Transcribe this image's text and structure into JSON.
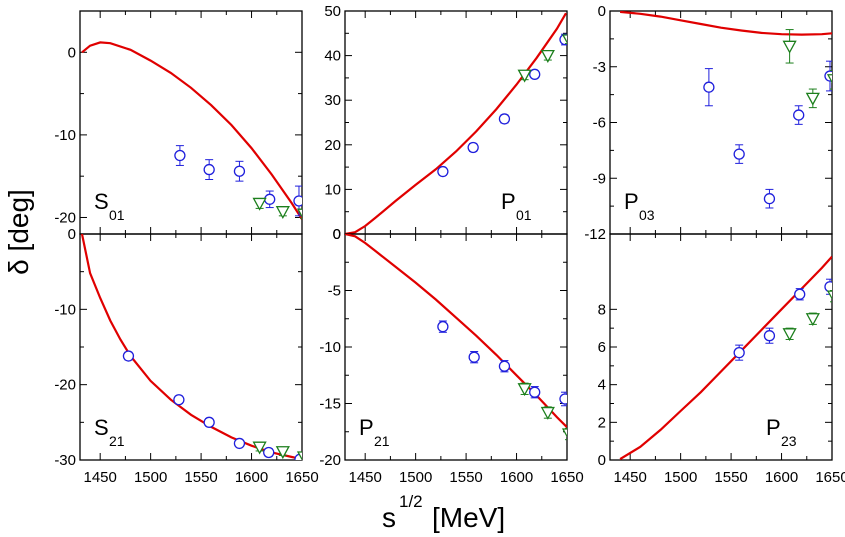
{
  "chart_data": {
    "type": "scatter",
    "ylabel": "δ [deg]",
    "xlabel_main": "s",
    "xlabel_sup": "1/2",
    "xlabel_unit": "[MeV]",
    "xlim": [
      1430,
      1650
    ],
    "x_ticks": [
      1450,
      1500,
      1550,
      1600,
      1650
    ],
    "x_tick_labels": [
      "1450",
      "1500",
      "1550",
      "1600",
      "1650"
    ],
    "colors": {
      "model": "#e00000",
      "circle": "#1f1fdc",
      "triangle": "#1c7f1c"
    },
    "panels": [
      {
        "id": "S01",
        "label": "S",
        "sub": "01",
        "label_pos": "bottom-left",
        "ylim": [
          -22,
          5
        ],
        "y_ticks": [
          0,
          -10,
          -20
        ],
        "y_tick_labels": [
          "0",
          "-10",
          "-20"
        ],
        "curve": [
          [
            1432,
            0
          ],
          [
            1440,
            0.8
          ],
          [
            1450,
            1.2
          ],
          [
            1460,
            1.1
          ],
          [
            1480,
            0.3
          ],
          [
            1500,
            -1.0
          ],
          [
            1520,
            -2.5
          ],
          [
            1540,
            -4.3
          ],
          [
            1560,
            -6.4
          ],
          [
            1580,
            -8.8
          ],
          [
            1600,
            -11.6
          ],
          [
            1620,
            -14.8
          ],
          [
            1640,
            -18.3
          ],
          [
            1650,
            -20.2
          ]
        ],
        "circles": [
          [
            1529,
            -12.5,
            1.2
          ],
          [
            1558,
            -14.2,
            1.2
          ],
          [
            1588,
            -14.4,
            1.2
          ],
          [
            1618,
            -17.8,
            1.0
          ],
          [
            1647,
            -18.0,
            1.8
          ]
        ],
        "triangles": [
          [
            1608,
            -18.3,
            0.6
          ],
          [
            1631,
            -19.3,
            0.5
          ],
          [
            1652,
            -19.6,
            0.5
          ]
        ]
      },
      {
        "id": "P01",
        "label": "P",
        "sub": "01",
        "label_pos": "bottom-right",
        "ylim": [
          0,
          50
        ],
        "y_ticks": [
          0,
          10,
          20,
          30,
          40,
          50
        ],
        "y_tick_labels": [
          "0",
          "10",
          "20",
          "30",
          "40",
          "50"
        ],
        "curve": [
          [
            1430,
            0
          ],
          [
            1440,
            0.4
          ],
          [
            1450,
            1.8
          ],
          [
            1460,
            3.6
          ],
          [
            1480,
            7.4
          ],
          [
            1500,
            11.0
          ],
          [
            1520,
            14.5
          ],
          [
            1540,
            18.5
          ],
          [
            1560,
            23.0
          ],
          [
            1580,
            28.0
          ],
          [
            1600,
            33.5
          ],
          [
            1620,
            39.5
          ],
          [
            1640,
            46.0
          ],
          [
            1649,
            49.5
          ]
        ],
        "circles": [
          [
            1527,
            14.0,
            0.8
          ],
          [
            1557,
            19.4,
            0.9
          ],
          [
            1588,
            25.8,
            0.9
          ],
          [
            1618,
            35.8,
            0.8
          ],
          [
            1648,
            43.6,
            1.2
          ]
        ],
        "triangles": [
          [
            1608,
            35.6,
            1.0
          ],
          [
            1631,
            40.0,
            1.0
          ],
          [
            1652,
            43.5,
            0.8
          ]
        ]
      },
      {
        "id": "P03",
        "label": "P",
        "sub": "03",
        "label_pos": "bottom-left",
        "ylim": [
          -12,
          0
        ],
        "y_ticks": [
          0,
          -3,
          -6,
          -9,
          -12
        ],
        "y_tick_labels": [
          "0",
          "-3",
          "-6",
          "-9",
          "-12"
        ],
        "curve": [
          [
            1440,
            -0.05
          ],
          [
            1460,
            -0.15
          ],
          [
            1480,
            -0.3
          ],
          [
            1500,
            -0.5
          ],
          [
            1520,
            -0.7
          ],
          [
            1540,
            -0.9
          ],
          [
            1560,
            -1.05
          ],
          [
            1580,
            -1.18
          ],
          [
            1600,
            -1.25
          ],
          [
            1620,
            -1.27
          ],
          [
            1640,
            -1.25
          ],
          [
            1650,
            -1.2
          ]
        ],
        "circles": [
          [
            1528,
            -4.1,
            1.0
          ],
          [
            1558,
            -7.7,
            0.5
          ],
          [
            1588,
            -10.1,
            0.5
          ],
          [
            1617,
            -5.6,
            0.5
          ],
          [
            1648,
            -3.5,
            0.8
          ]
        ],
        "triangles": [
          [
            1608,
            -1.9,
            0.9
          ],
          [
            1631,
            -4.7,
            0.5
          ],
          [
            1652,
            -3.7,
            0.5
          ]
        ]
      },
      {
        "id": "S21",
        "label": "S",
        "sub": "21",
        "label_pos": "bottom-left",
        "ylim": [
          -30,
          0
        ],
        "y_ticks": [
          0,
          -10,
          -20,
          -30
        ],
        "y_tick_labels": [
          "0",
          "-10",
          "-20",
          "-30"
        ],
        "curve": [
          [
            1432,
            0
          ],
          [
            1440,
            -5.2
          ],
          [
            1450,
            -8.5
          ],
          [
            1460,
            -11.5
          ],
          [
            1470,
            -14.0
          ],
          [
            1480,
            -16.2
          ],
          [
            1500,
            -19.5
          ],
          [
            1520,
            -22.0
          ],
          [
            1540,
            -24.0
          ],
          [
            1560,
            -25.6
          ],
          [
            1580,
            -27.0
          ],
          [
            1600,
            -28.1
          ],
          [
            1620,
            -29.0
          ],
          [
            1640,
            -29.6
          ],
          [
            1650,
            -29.9
          ]
        ],
        "circles": [
          [
            1478,
            -16.2,
            0.5
          ],
          [
            1528,
            -22.0,
            0.5
          ],
          [
            1558,
            -25.0,
            0.5
          ],
          [
            1588,
            -27.8,
            0.4
          ],
          [
            1617,
            -29.0,
            0.5
          ],
          [
            1648,
            -29.9,
            0.5
          ]
        ],
        "triangles": [
          [
            1608,
            -28.3,
            0.5
          ],
          [
            1631,
            -28.9,
            0.5
          ],
          [
            1652,
            -29.6,
            0.5
          ]
        ]
      },
      {
        "id": "P21",
        "label": "P",
        "sub": "21",
        "label_pos": "bottom-left",
        "ylim": [
          -20,
          0
        ],
        "y_ticks": [
          0,
          -5,
          -10,
          -15,
          -20
        ],
        "y_tick_labels": [
          "0",
          "-5",
          "-10",
          "-15",
          "-20"
        ],
        "curve": [
          [
            1430,
            0
          ],
          [
            1440,
            -0.2
          ],
          [
            1450,
            -0.8
          ],
          [
            1460,
            -1.5
          ],
          [
            1480,
            -2.9
          ],
          [
            1500,
            -4.3
          ],
          [
            1520,
            -5.8
          ],
          [
            1540,
            -7.4
          ],
          [
            1560,
            -9.0
          ],
          [
            1580,
            -10.7
          ],
          [
            1600,
            -12.5
          ],
          [
            1620,
            -14.3
          ],
          [
            1640,
            -16.2
          ],
          [
            1650,
            -17.1
          ]
        ],
        "circles": [
          [
            1527,
            -8.2,
            0.5
          ],
          [
            1558,
            -10.9,
            0.5
          ],
          [
            1588,
            -11.7,
            0.5
          ],
          [
            1618,
            -14.0,
            0.5
          ],
          [
            1648,
            -14.6,
            0.6
          ]
        ],
        "triangles": [
          [
            1608,
            -13.7,
            0.5
          ],
          [
            1631,
            -15.8,
            0.5
          ],
          [
            1652,
            -17.7,
            0.5
          ]
        ]
      },
      {
        "id": "P23",
        "label": "P",
        "sub": "23",
        "label_pos": "bottom-right",
        "ylim": [
          0,
          12
        ],
        "y_ticks": [
          0,
          2,
          4,
          6,
          8
        ],
        "y_tick_labels": [
          "0",
          "2",
          "4",
          "6",
          "8"
        ],
        "curve": [
          [
            1440,
            0.05
          ],
          [
            1460,
            0.7
          ],
          [
            1480,
            1.6
          ],
          [
            1500,
            2.6
          ],
          [
            1520,
            3.6
          ],
          [
            1540,
            4.7
          ],
          [
            1560,
            5.8
          ],
          [
            1580,
            6.9
          ],
          [
            1600,
            8.0
          ],
          [
            1620,
            9.1
          ],
          [
            1640,
            10.2
          ],
          [
            1650,
            10.8
          ]
        ],
        "circles": [
          [
            1558,
            5.7,
            0.4
          ],
          [
            1588,
            6.6,
            0.4
          ],
          [
            1618,
            8.8,
            0.3
          ],
          [
            1648,
            9.2,
            0.4
          ]
        ],
        "triangles": [
          [
            1608,
            6.7,
            0.3
          ],
          [
            1631,
            7.5,
            0.3
          ],
          [
            1652,
            8.7,
            0.3
          ]
        ]
      }
    ]
  }
}
